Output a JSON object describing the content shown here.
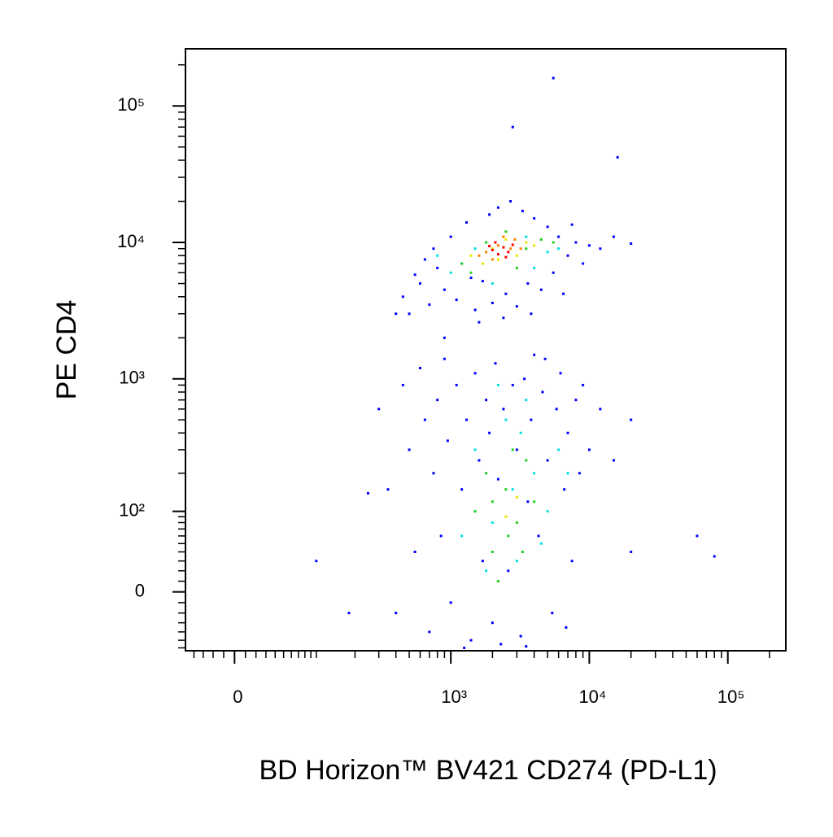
{
  "chart_data": {
    "type": "scatter",
    "scale": "arcsinh",
    "xlabel": "BD Horizon™ BV421 CD274 (PD-L1)",
    "ylabel": "PE CD4",
    "xlim": [
      -50,
      262144
    ],
    "ylim": [
      -64,
      262144
    ],
    "xticks": [
      0,
      {
        "value": 1000,
        "label": "10³"
      },
      {
        "value": 10000,
        "label": "10⁴"
      },
      {
        "value": 100000,
        "label": "10⁵"
      }
    ],
    "yticks": [
      0,
      {
        "value": 100,
        "label": "10²"
      },
      {
        "value": 1000,
        "label": "10³"
      },
      {
        "value": 10000,
        "label": "10⁴"
      },
      {
        "value": 100000,
        "label": "10⁵"
      }
    ],
    "xminorticks": [
      -40,
      -30,
      -20,
      -10,
      10,
      20,
      30,
      40,
      50,
      60,
      70,
      80,
      90,
      100,
      200,
      300,
      400,
      500,
      600,
      700,
      800,
      900,
      2000,
      3000,
      4000,
      5000,
      6000,
      7000,
      8000,
      9000,
      20000,
      30000,
      40000,
      50000,
      60000,
      70000,
      80000,
      90000,
      200000
    ],
    "yminorticks": [
      -60,
      -50,
      -40,
      -30,
      -20,
      -10,
      10,
      20,
      30,
      40,
      50,
      60,
      70,
      80,
      90,
      200,
      300,
      400,
      500,
      600,
      700,
      800,
      900,
      2000,
      3000,
      4000,
      5000,
      6000,
      7000,
      8000,
      9000,
      20000,
      30000,
      40000,
      50000,
      60000,
      70000,
      80000,
      90000,
      200000
    ],
    "series": [
      {
        "color": "#0000ff",
        "x": [
          450,
          600,
          700,
          800,
          900,
          1000,
          1100,
          1200,
          1300,
          1500,
          1700,
          1900,
          2000,
          2200,
          2500,
          2700,
          3000,
          3300,
          3600,
          4000,
          4500,
          5000,
          5500,
          6000,
          7000,
          8000,
          9000,
          10000,
          12000,
          550,
          650,
          750,
          1400,
          2400,
          3800,
          6500,
          1600,
          15000,
          500,
          7500,
          5500,
          2800,
          16000,
          900,
          20000,
          400,
          300,
          350,
          400,
          450,
          500,
          550,
          600,
          650,
          700,
          750,
          800,
          850,
          900,
          950,
          1000,
          1100,
          1200,
          1300,
          1400,
          1500,
          1600,
          1700,
          1800,
          1900,
          2000,
          2100,
          2200,
          2400,
          2600,
          2800,
          3000,
          3200,
          3400,
          3600,
          3800,
          4000,
          4300,
          4600,
          5000,
          5400,
          5800,
          6200,
          6600,
          7000,
          7500,
          8000,
          8500,
          9000,
          1250,
          2300,
          3500,
          4800,
          6800,
          10000,
          12000,
          15000,
          20000,
          60000,
          80000,
          100,
          180,
          250,
          20000
        ],
        "y": [
          4000,
          5000,
          3500,
          6500,
          4500,
          11000,
          3800,
          7000,
          14000,
          3200,
          5200,
          16000,
          3600,
          18000,
          4200,
          20000,
          3400,
          17000,
          5000,
          15000,
          4500,
          13000,
          6000,
          11000,
          8000,
          10000,
          7000,
          9500,
          9000,
          5800,
          7500,
          9000,
          5500,
          2800,
          3000,
          4200,
          2600,
          11000,
          3000,
          13500,
          160000,
          70000,
          42000,
          2000,
          9800,
          3000,
          600,
          150,
          -20,
          900,
          300,
          40,
          1200,
          500,
          -40,
          200,
          700,
          60,
          1400,
          350,
          -10,
          900,
          150,
          500,
          -50,
          1100,
          250,
          30,
          700,
          400,
          -30,
          1300,
          180,
          600,
          20,
          900,
          300,
          -45,
          1000,
          120,
          500,
          1500,
          60,
          800,
          250,
          -20,
          600,
          1100,
          150,
          400,
          30,
          700,
          200,
          900,
          -60,
          -55,
          -58,
          1400,
          -35,
          300,
          600,
          250,
          500,
          60,
          35,
          30,
          -20,
          140,
          40
        ]
      },
      {
        "color": "#00e0e0",
        "x": [
          1000,
          1500,
          3500,
          5000,
          2000,
          6000,
          800,
          4000,
          1500,
          2000,
          2500,
          3000,
          4000,
          5000,
          1200,
          3500,
          2800,
          6000,
          1800,
          4500,
          2200,
          3200,
          7000
        ],
        "y": [
          6000,
          9000,
          11000,
          8500,
          5000,
          9000,
          8000,
          6500,
          300,
          80,
          500,
          30,
          200,
          100,
          60,
          700,
          150,
          300,
          20,
          50,
          900,
          400,
          200
        ]
      },
      {
        "color": "#20d020",
        "x": [
          1200,
          1800,
          2500,
          3500,
          4500,
          1400,
          3000,
          5500,
          1500,
          2000,
          2500,
          3000,
          3500,
          2200,
          2800,
          4000,
          1800,
          3300,
          2600,
          2000
        ],
        "y": [
          7000,
          10000,
          12000,
          9000,
          10500,
          6000,
          6500,
          10000,
          100,
          40,
          150,
          80,
          250,
          10,
          300,
          120,
          200,
          40,
          60,
          120
        ]
      },
      {
        "color": "#e8e800",
        "x": [
          1400,
          2000,
          2500,
          3000,
          3500,
          1700,
          2200,
          4000,
          2500,
          3000
        ],
        "y": [
          8000,
          9000,
          10500,
          8000,
          10000,
          7000,
          7500,
          9500,
          90,
          130
        ]
      },
      {
        "color": "#ff8000",
        "x": [
          1800,
          2200,
          2700,
          3200,
          2000,
          1600,
          2400,
          2900
        ],
        "y": [
          8500,
          9500,
          9000,
          9000,
          7500,
          8000,
          11000,
          10500
        ]
      },
      {
        "color": "#ff0000",
        "x": [
          2000,
          2400,
          2600,
          2200,
          2800,
          2100,
          2500,
          1900
        ],
        "y": [
          8800,
          9200,
          8500,
          8200,
          9600,
          10000,
          7800,
          9400
        ]
      }
    ]
  }
}
